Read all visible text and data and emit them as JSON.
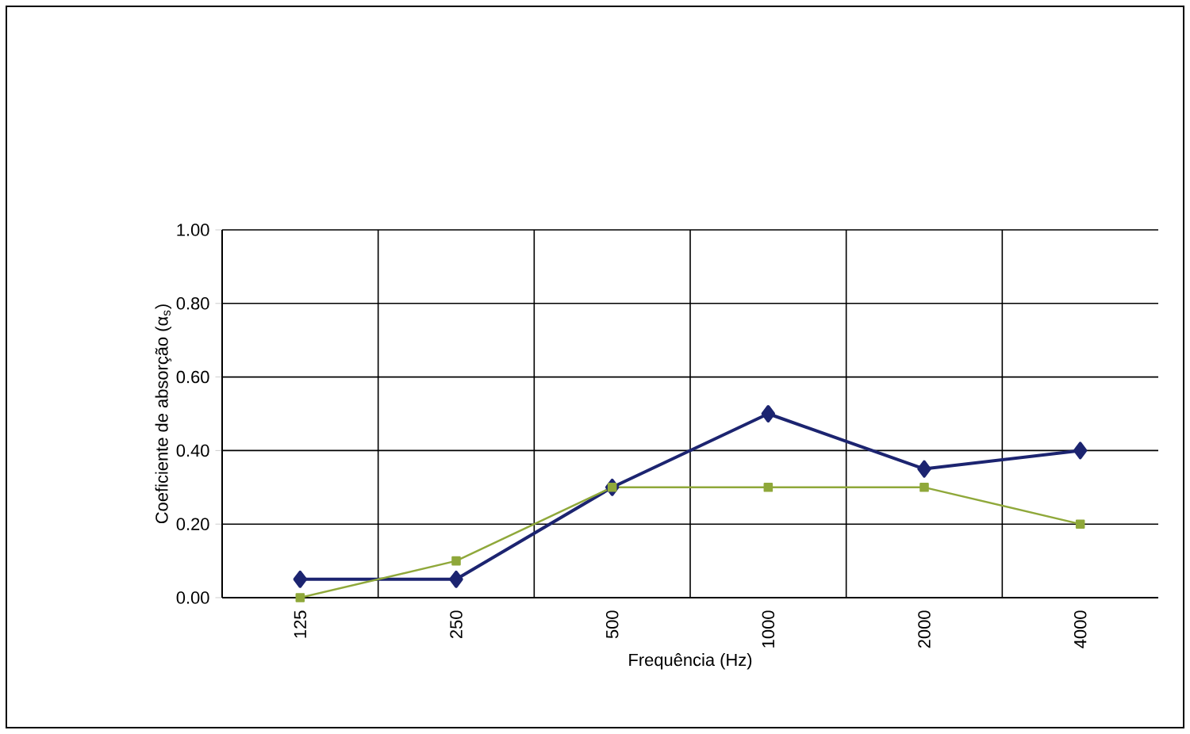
{
  "chart_data": {
    "type": "line",
    "xlabel": "Frequência (Hz)",
    "ylabel": "Coeficiente de absorção (α$_{s}$)",
    "categories": [
      "125",
      "250",
      "500",
      "1000",
      "2000",
      "4000"
    ],
    "series": [
      {
        "color": "#1c2470",
        "marker": "diamond",
        "values": [
          0.05,
          0.05,
          0.3,
          0.5,
          0.35,
          0.4
        ]
      },
      {
        "color": "#8fa83a",
        "marker": "square",
        "values": [
          0.0,
          0.1,
          0.3,
          0.3,
          0.3,
          0.2
        ]
      }
    ],
    "ylim": [
      0,
      1
    ],
    "yticks": [
      {
        "value": 0,
        "label": "0.00"
      },
      {
        "value": 0.2,
        "label": "0.20"
      },
      {
        "value": 0.4,
        "label": "0.40"
      },
      {
        "value": 0.6,
        "label": "0.60"
      },
      {
        "value": 0.8,
        "label": "0.80"
      },
      {
        "value": 1,
        "label": "1.00"
      }
    ],
    "grid": true,
    "line_style": "solid"
  }
}
